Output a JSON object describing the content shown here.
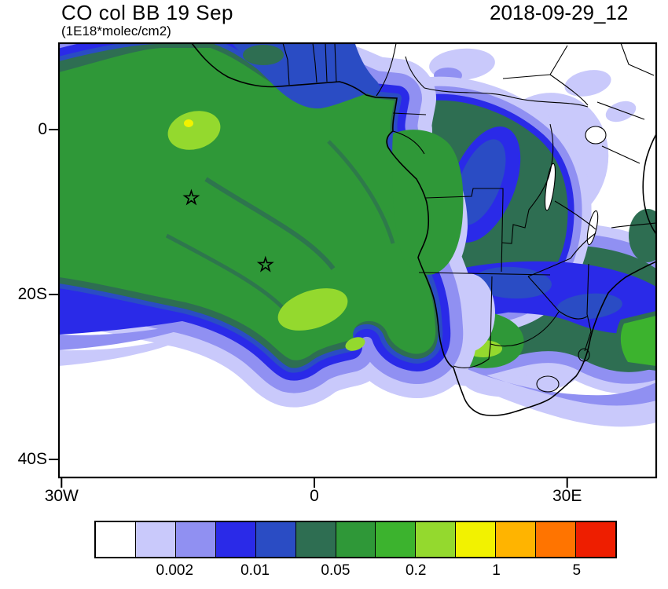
{
  "header": {
    "title": "CO col BB 19 Sep",
    "subtitle": "(1E18*molec/cm2)",
    "timestamp": "2018-09-29_12"
  },
  "chart_data": {
    "type": "heatmap",
    "subtype": "filled-contour-map",
    "title": "CO col BB 19 Sep",
    "units": "1E18*molec/cm2",
    "timestamp": "2018-09-29_12",
    "region": "South Atlantic Ocean and southern Africa biomass-burning CO column plume",
    "projection": "lat-lon",
    "lon_range": [
      -30.3,
      40.5
    ],
    "lat_range": [
      -42.7,
      10.5
    ],
    "grid": false,
    "legend_position": "bottom",
    "x_axis": {
      "ticks": [
        {
          "value": -30,
          "label": "30W"
        },
        {
          "value": 0,
          "label": "0"
        },
        {
          "value": 30,
          "label": "30E"
        }
      ]
    },
    "y_axis": {
      "ticks": [
        {
          "value": 0,
          "label": "0"
        },
        {
          "value": -20,
          "label": "20S"
        },
        {
          "value": -40,
          "label": "40S"
        }
      ]
    },
    "colorbar": {
      "levels": [
        0.001,
        0.002,
        0.005,
        0.01,
        0.02,
        0.05,
        0.1,
        0.2,
        0.5,
        1,
        2,
        5
      ],
      "colors": [
        "#ffffff",
        "#c9c9fb",
        "#9090f2",
        "#2a2ae8",
        "#2a4cc4",
        "#2e6e52",
        "#2f9838",
        "#3cb32e",
        "#94d92e",
        "#f2f200",
        "#ffb400",
        "#ff7400",
        "#ee1e00"
      ],
      "ticks": [
        {
          "label": "0.002",
          "boundary": 2
        },
        {
          "label": "0.01",
          "boundary": 4
        },
        {
          "label": "0.05",
          "boundary": 6
        },
        {
          "label": "0.2",
          "boundary": 8
        },
        {
          "label": "1",
          "boundary": 10
        },
        {
          "label": "5",
          "boundary": 12
        }
      ]
    },
    "markers": [
      {
        "type": "star",
        "lon": -14.6,
        "lat": -8.3
      },
      {
        "type": "star",
        "lon": -5.8,
        "lat": -16.4
      }
    ],
    "description": "CO column plume (0.05-0.5E18 molec/cm2) over the South Atlantic off Angola/Namibia, local maxima near 15W/0S and 5W/18S, elevated values over central and southern Africa, low background over East Africa and the subtropical south."
  }
}
